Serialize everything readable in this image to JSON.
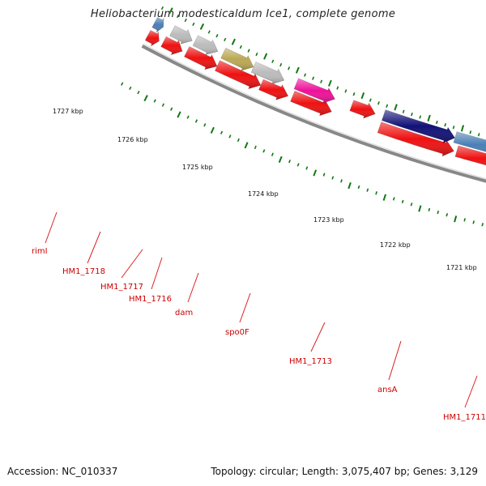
{
  "title": "Heliobacterium modesticaldum Ice1, complete genome",
  "footer": {
    "accession": "Accession: NC_010337",
    "stats": "Topology: circular; Length: 3,075,407 bp; Genes: 3,129"
  },
  "colors": {
    "gene_red": "#ee1111",
    "gene_gray": "#bbbbbb",
    "gene_olive": "#bba855",
    "gene_magenta": "#ee1199",
    "gene_navy": "#111177",
    "gene_steelblue": "#4a7fb5",
    "gene_green": "#33cc33",
    "tick_green": "#117711",
    "label_red": "#cc0000",
    "backbone": "#888888"
  },
  "kbp_labels": [
    "1727 kbp",
    "1726 kbp",
    "1725 kbp",
    "1724 kbp",
    "1723 kbp",
    "1722 kbp",
    "1721 kbp"
  ],
  "gene_labels": [
    "rimI",
    "HM1_1718",
    "HM1_1717",
    "HM1_1716",
    "dam",
    "spo0F",
    "HM1_1713",
    "ansA",
    "HM1_1711"
  ]
}
